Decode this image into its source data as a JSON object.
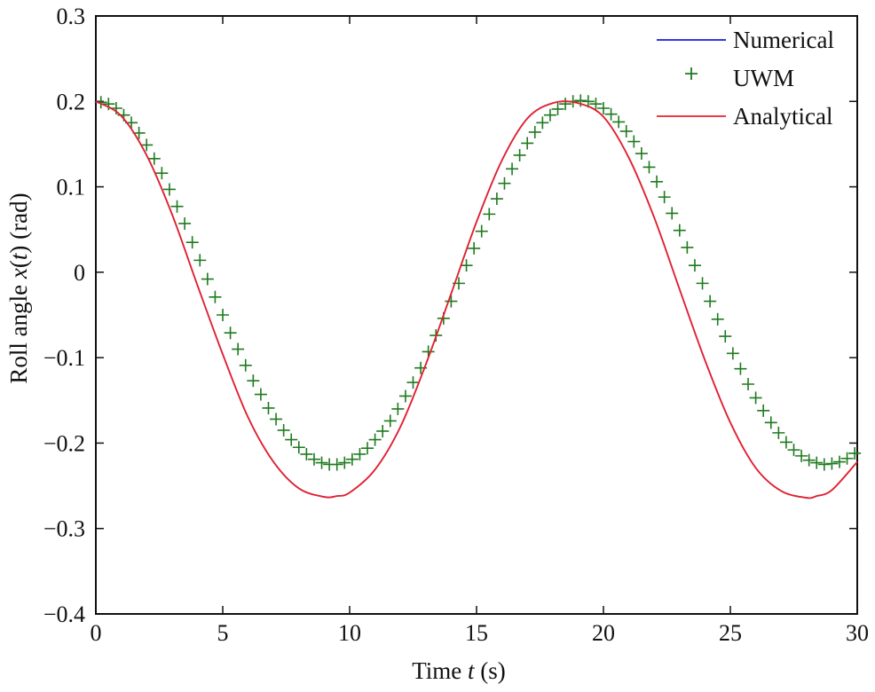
{
  "chart_data": {
    "type": "line",
    "title": "",
    "xlabel_parts": [
      "Time ",
      "t",
      " (s)"
    ],
    "ylabel_parts": [
      "Roll angle ",
      "x",
      "(",
      "t",
      ") (rad)"
    ],
    "xlim": [
      0,
      30
    ],
    "ylim": [
      -0.4,
      0.3
    ],
    "xticks": [
      0,
      5,
      10,
      15,
      20,
      25,
      30
    ],
    "xtick_labels": [
      "0",
      "5",
      "10",
      "15",
      "20",
      "25",
      "30"
    ],
    "yticks": [
      -0.4,
      -0.3,
      -0.2,
      -0.1,
      0,
      0.1,
      0.2,
      0.3
    ],
    "ytick_labels": [
      "−0.4",
      "−0.3",
      "−0.2",
      "−0.1",
      "0",
      "0.1",
      "0.2",
      "0.3"
    ],
    "grid": false,
    "legend_position": "top-right",
    "legend": [
      {
        "label": "Numerical",
        "marker": "line",
        "color": "#1a1adc"
      },
      {
        "label": "UWM",
        "marker": "+",
        "color": "#1f7a1f"
      },
      {
        "label": "Analytical",
        "marker": "line",
        "color": "#e8202a"
      }
    ],
    "series": [
      {
        "name": "Numerical",
        "style": "line",
        "color": "#1a1adc",
        "x": [
          0,
          1,
          2,
          3,
          4,
          5,
          6,
          7,
          8,
          9,
          9.5,
          10,
          11,
          12,
          13,
          14,
          15,
          16,
          17,
          18,
          19,
          20,
          21,
          22,
          23,
          24,
          25,
          26,
          27,
          28,
          28.4,
          29,
          30
        ],
        "y": [
          0.2,
          0.183,
          0.137,
          0.068,
          -0.015,
          -0.096,
          -0.17,
          -0.222,
          -0.253,
          -0.263,
          -0.262,
          -0.258,
          -0.231,
          -0.181,
          -0.108,
          -0.025,
          0.059,
          0.131,
          0.18,
          0.198,
          0.198,
          0.182,
          0.134,
          0.064,
          -0.02,
          -0.103,
          -0.176,
          -0.229,
          -0.256,
          -0.264,
          -0.262,
          -0.255,
          -0.222
        ]
      },
      {
        "name": "UWM",
        "style": "markers",
        "marker": "+",
        "color": "#1f7a1f",
        "x": [
          0.2,
          0.5,
          0.8,
          1.1,
          1.4,
          1.7,
          2.0,
          2.3,
          2.6,
          2.9,
          3.2,
          3.5,
          3.8,
          4.1,
          4.4,
          4.7,
          5.0,
          5.3,
          5.6,
          5.9,
          6.2,
          6.5,
          6.8,
          7.1,
          7.4,
          7.7,
          8.0,
          8.3,
          8.6,
          8.9,
          9.2,
          9.5,
          9.8,
          10.1,
          10.4,
          10.7,
          11.0,
          11.3,
          11.6,
          11.9,
          12.2,
          12.5,
          12.8,
          13.1,
          13.4,
          13.7,
          14.0,
          14.3,
          14.6,
          14.9,
          15.2,
          15.5,
          15.8,
          16.1,
          16.4,
          16.7,
          17.0,
          17.3,
          17.6,
          17.9,
          18.2,
          18.5,
          18.8,
          19.1,
          19.4,
          19.7,
          20.0,
          20.3,
          20.6,
          20.9,
          21.2,
          21.5,
          21.8,
          22.1,
          22.4,
          22.7,
          23.0,
          23.3,
          23.6,
          23.9,
          24.2,
          24.5,
          24.8,
          25.1,
          25.4,
          25.7,
          26.0,
          26.3,
          26.6,
          26.9,
          27.2,
          27.5,
          27.8,
          28.1,
          28.4,
          28.7,
          29.0,
          29.3,
          29.6,
          29.9
        ],
        "y": [
          0.199,
          0.197,
          0.192,
          0.184,
          0.175,
          0.163,
          0.149,
          0.133,
          0.116,
          0.097,
          0.077,
          0.057,
          0.035,
          0.014,
          -0.008,
          -0.029,
          -0.05,
          -0.071,
          -0.09,
          -0.109,
          -0.127,
          -0.143,
          -0.159,
          -0.172,
          -0.185,
          -0.196,
          -0.205,
          -0.213,
          -0.219,
          -0.223,
          -0.225,
          -0.225,
          -0.223,
          -0.219,
          -0.213,
          -0.206,
          -0.196,
          -0.186,
          -0.174,
          -0.16,
          -0.145,
          -0.129,
          -0.112,
          -0.093,
          -0.074,
          -0.054,
          -0.034,
          -0.013,
          0.008,
          0.028,
          0.048,
          0.068,
          0.086,
          0.104,
          0.121,
          0.137,
          0.151,
          0.164,
          0.175,
          0.184,
          0.191,
          0.197,
          0.2,
          0.201,
          0.2,
          0.197,
          0.192,
          0.185,
          0.176,
          0.165,
          0.153,
          0.139,
          0.123,
          0.106,
          0.088,
          0.069,
          0.049,
          0.029,
          0.008,
          -0.013,
          -0.034,
          -0.055,
          -0.075,
          -0.095,
          -0.113,
          -0.131,
          -0.147,
          -0.162,
          -0.176,
          -0.188,
          -0.199,
          -0.208,
          -0.215,
          -0.22,
          -0.223,
          -0.225,
          -0.224,
          -0.222,
          -0.218,
          -0.212
        ]
      },
      {
        "name": "Analytical",
        "style": "line",
        "color": "#e8202a",
        "x": [
          0,
          1,
          2,
          3,
          4,
          5,
          6,
          7,
          8,
          9,
          9.5,
          10,
          11,
          12,
          13,
          14,
          15,
          16,
          17,
          18,
          19,
          20,
          21,
          22,
          23,
          24,
          25,
          26,
          27,
          28,
          28.4,
          29,
          30
        ],
        "y": [
          0.2,
          0.183,
          0.137,
          0.068,
          -0.015,
          -0.096,
          -0.17,
          -0.222,
          -0.253,
          -0.263,
          -0.262,
          -0.258,
          -0.231,
          -0.181,
          -0.108,
          -0.025,
          0.059,
          0.131,
          0.18,
          0.198,
          0.198,
          0.182,
          0.134,
          0.064,
          -0.02,
          -0.103,
          -0.176,
          -0.229,
          -0.256,
          -0.264,
          -0.262,
          -0.255,
          -0.222
        ]
      }
    ]
  }
}
